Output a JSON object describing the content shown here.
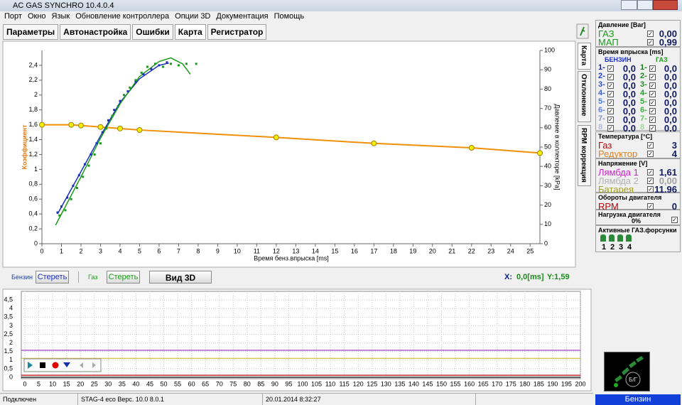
{
  "window": {
    "title": "AC GAS SYNCHRO  10.4.0.4"
  },
  "menu": [
    "Порт",
    "Окно",
    "Язык",
    "Обновление контроллера",
    "Опции 3D",
    "Документация",
    "Помощь"
  ],
  "tabs": [
    "Параметры",
    "Автонастройка",
    "Ошибки",
    "Карта",
    "Регистратор"
  ],
  "side_tabs": [
    "Карта",
    "Отклонение",
    "RPM коррекция"
  ],
  "map_chart": {
    "type": "scatter",
    "x_label": "Время бенз.впрыска [ms]",
    "y_label": "Коэффициент",
    "y2_label": "Давление в коллекторе [kPa]",
    "xlim": [
      0,
      25.5
    ],
    "xticks": [
      0,
      1,
      2,
      3,
      4,
      5,
      6,
      7,
      8,
      9,
      10,
      11,
      12,
      13,
      14,
      15,
      16,
      17,
      18,
      19,
      20,
      21,
      22,
      23,
      24,
      25
    ],
    "ylim": [
      0,
      2.6
    ],
    "yticks": [
      0,
      {
        "value": 0.2,
        "label": "0,2"
      },
      {
        "value": 0.4,
        "label": "0,4"
      },
      {
        "value": 0.6,
        "label": "0,6"
      },
      {
        "value": 0.8,
        "label": "0,8"
      },
      1,
      {
        "value": 1.2,
        "label": "1,2"
      },
      {
        "value": 1.4,
        "label": "1,4"
      },
      {
        "value": 1.6,
        "label": "1,6"
      },
      {
        "value": 1.8,
        "label": "1,8"
      },
      2,
      {
        "value": 2.2,
        "label": "2,2"
      },
      {
        "value": 2.4,
        "label": "2,4"
      }
    ],
    "y2lim": [
      0,
      100
    ],
    "y2ticks": [
      0,
      10,
      20,
      30,
      40,
      50,
      60,
      70,
      80,
      90,
      100
    ],
    "correction": {
      "color": "#f0900a",
      "x": [
        0,
        1.5,
        2,
        3,
        4,
        5,
        12,
        17,
        22,
        25.5
      ],
      "values": [
        1.6,
        1.6,
        1.59,
        1.57,
        1.55,
        1.53,
        1.43,
        1.35,
        1.29,
        1.22
      ]
    },
    "series": [
      {
        "color": "#1c2fb8",
        "x": [
          0.8,
          1,
          1.3,
          1.6,
          1.9,
          2.2,
          2.5,
          2.8,
          3.1,
          3.4,
          3.7,
          4,
          4.4,
          4.8,
          5.2,
          5.6,
          6,
          6.4
        ],
        "values": [
          0.42,
          0.5,
          0.62,
          0.78,
          0.92,
          1.07,
          1.2,
          1.35,
          1.5,
          1.66,
          1.8,
          1.92,
          2.05,
          2.18,
          2.28,
          2.35,
          2.4,
          2.44
        ]
      },
      {
        "color": "#1a9a1a",
        "x": [
          0.9,
          1.2,
          1.5,
          1.8,
          2.1,
          2.4,
          2.7,
          3,
          3.3,
          3.6,
          3.9,
          4.2,
          4.5,
          4.8,
          5.1,
          5.4,
          5.8,
          6.2,
          6.6,
          7,
          7.4,
          7.9
        ],
        "values": [
          0.38,
          0.45,
          0.6,
          0.75,
          0.9,
          1.05,
          1.2,
          1.35,
          1.55,
          1.72,
          1.85,
          2,
          2.1,
          2.2,
          2.3,
          2.38,
          2.42,
          2.38,
          2.42,
          2.4,
          2.42,
          2.42
        ]
      }
    ],
    "fits": [
      {
        "color": "#1c2fb8",
        "x": [
          0.8,
          2,
          3,
          4,
          5,
          6,
          6.5
        ],
        "values": [
          0.4,
          0.97,
          1.45,
          1.9,
          2.22,
          2.4,
          2.43
        ]
      },
      {
        "color": "#1a9a1a",
        "x": [
          0.7,
          2,
          3,
          4,
          5,
          6,
          6.6,
          7.2,
          7.6
        ],
        "values": [
          0.25,
          0.9,
          1.42,
          1.88,
          2.25,
          2.45,
          2.5,
          2.42,
          2.28
        ]
      }
    ]
  },
  "controls": {
    "petrol": "Бензин",
    "clear_petrol": "Стереть",
    "gas": "Газ",
    "clear_gas": "Стереть",
    "view3d": "Вид 3D",
    "x_readout": "X:",
    "x_value": "0,0[ms]",
    "y_readout": "Y:1,59"
  },
  "log_chart": {
    "type": "line",
    "xlim": [
      0,
      200
    ],
    "xticks": [
      0,
      5,
      10,
      15,
      20,
      25,
      30,
      35,
      40,
      45,
      50,
      55,
      60,
      65,
      70,
      75,
      80,
      85,
      90,
      95,
      100,
      105,
      110,
      115,
      120,
      125,
      130,
      135,
      140,
      145,
      150,
      155,
      160,
      165,
      170,
      175,
      180,
      185,
      190,
      195,
      200
    ],
    "ylim": [
      0,
      5
    ],
    "yticks": [
      0,
      {
        "value": 0.5,
        "label": "0,5"
      },
      1,
      {
        "value": 1.5,
        "label": "1,5"
      },
      2,
      {
        "value": 2.5,
        "label": "2,5"
      },
      3,
      {
        "value": 3.5,
        "label": "3,5"
      },
      4,
      {
        "value": 4.5,
        "label": "4,5"
      }
    ],
    "grid": true,
    "lines": [
      {
        "color": "#a040c0",
        "value": 1.57
      },
      {
        "color": "#d8c040",
        "value": 1.1
      },
      {
        "color": "#c00000",
        "value": 0.12
      },
      {
        "color": "#000000",
        "value": 0
      }
    ]
  },
  "panel": {
    "pressure": {
      "title": "Давление [Bar]",
      "rows": [
        {
          "label": "ГАЗ",
          "value": "0,00"
        },
        {
          "label": "МАП",
          "value": "0,99"
        }
      ]
    },
    "injection": {
      "title": "Время впрыска [ms]",
      "petrol": "БЕНЗИН",
      "gas": "ГАЗ",
      "rows": [
        {
          "petrol_label": "1-",
          "petrol": "0,0",
          "gas_label": "1-",
          "gas": "0,0"
        },
        {
          "petrol_label": "2-",
          "petrol": "0,0",
          "gas_label": "2-",
          "gas": "0,0"
        },
        {
          "petrol_label": "3-",
          "petrol": "0,0",
          "gas_label": "3-",
          "gas": "0,0"
        },
        {
          "petrol_label": "4-",
          "petrol": "0,0",
          "gas_label": "4-",
          "gas": "0,0"
        },
        {
          "petrol_label": "5-",
          "petrol": "0,0",
          "gas_label": "5-",
          "gas": "0,0"
        },
        {
          "petrol_label": "6-",
          "petrol": "0,0",
          "gas_label": "6-",
          "gas": "0,0"
        },
        {
          "petrol_label": "7-",
          "petrol": "0,0",
          "gas_label": "7-",
          "gas": "0,0"
        },
        {
          "petrol_label": "8",
          "petrol": "0,0",
          "gas_label": "8",
          "gas": "0,0"
        }
      ]
    },
    "temperature": {
      "title": "Температура  [°C]",
      "rows": [
        {
          "label": "Газ",
          "value": "3"
        },
        {
          "label": "Редуктор",
          "value": "4"
        }
      ]
    },
    "voltage": {
      "title": "Напряжение [V]",
      "rows": [
        {
          "label": "Лямбда 1",
          "value": "1,61"
        },
        {
          "label": "Лямбда 2",
          "value": "0,00"
        },
        {
          "label": "Батарея",
          "value": "11,96"
        }
      ]
    },
    "rpm": {
      "title": "Обороты двигателя",
      "rows": [
        {
          "label": "RPM",
          "value": "0"
        }
      ]
    },
    "load": {
      "title": "Нагрузка двигателя",
      "value": "0%"
    },
    "injectors": {
      "title": "Активные ГАЗ.форсунки",
      "labels": [
        "1",
        "2",
        "3",
        "4"
      ]
    }
  },
  "status": [
    "Подключен",
    "STAG-4 eco   Верс. 10.0  8.0.1",
    "20.01.2014 8:32:27"
  ],
  "fuel_indicator": {
    "icon": "Б/Г",
    "mode": "Бензин"
  }
}
